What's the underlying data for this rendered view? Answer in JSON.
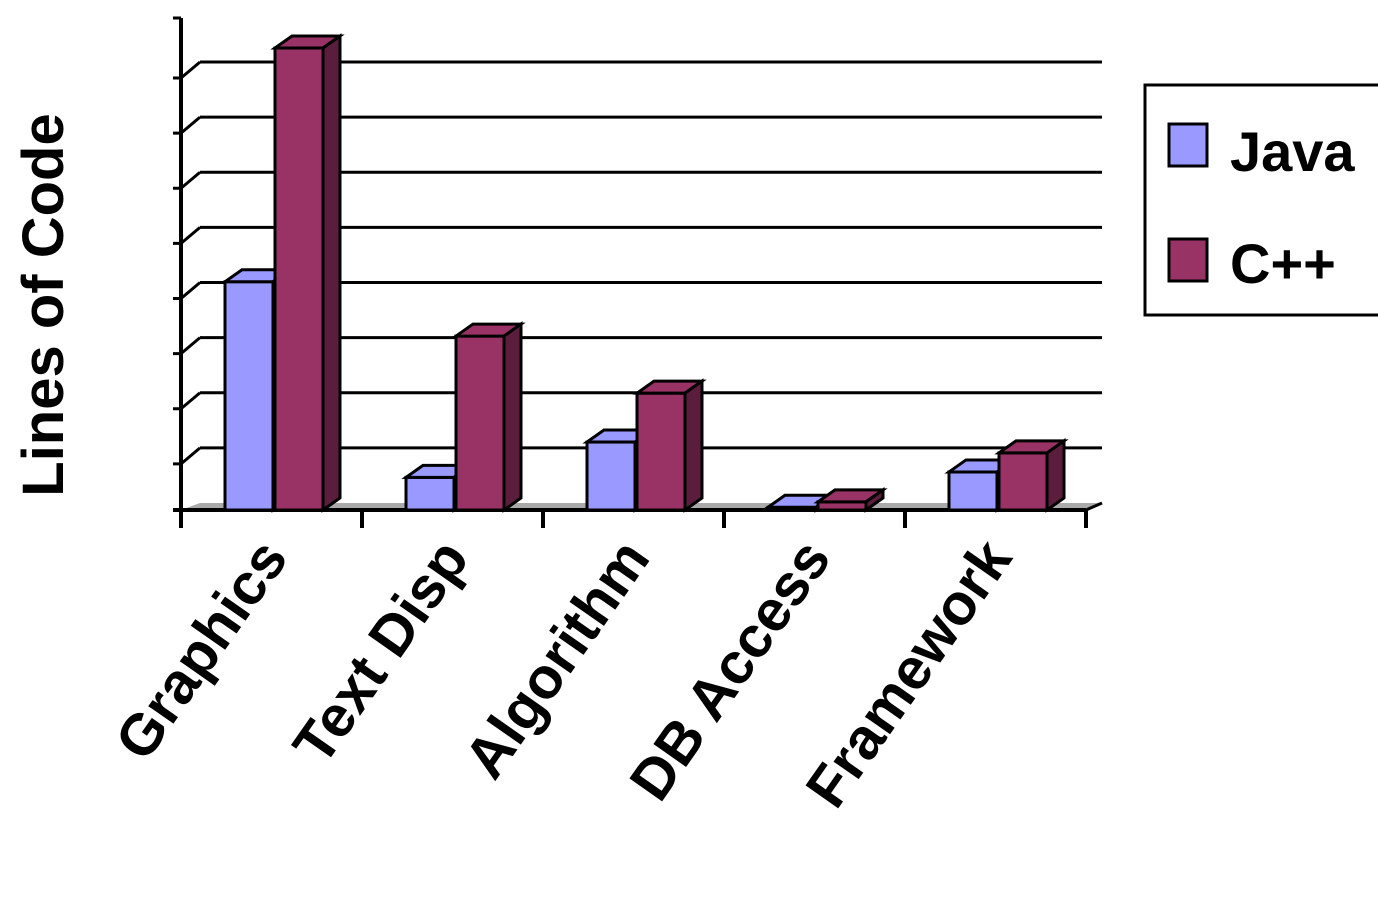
{
  "chart_data": {
    "type": "bar",
    "title": "",
    "xlabel": "",
    "ylabel": "Lines of Code",
    "categories": [
      "Graphics",
      "Text Disp",
      "Algorithm",
      "DB Access",
      "Framework"
    ],
    "series": [
      {
        "name": "Java",
        "values": [
          4.2,
          0.6,
          1.25,
          0.05,
          0.7
        ]
      },
      {
        "name": "C++",
        "values": [
          8.5,
          3.2,
          2.15,
          0.15,
          1.05
        ]
      }
    ],
    "ylim": [
      0,
      8.5
    ],
    "y_ticks_labeled": false,
    "grid": true,
    "legend": "right",
    "three_d": true,
    "colors": {
      "Java": "#9999ff",
      "C++": "#993366",
      "C++_side": "#5a1e3c",
      "Java_side": "#7777cc",
      "floor": "#aaaaaa",
      "axis": "#000000"
    }
  }
}
